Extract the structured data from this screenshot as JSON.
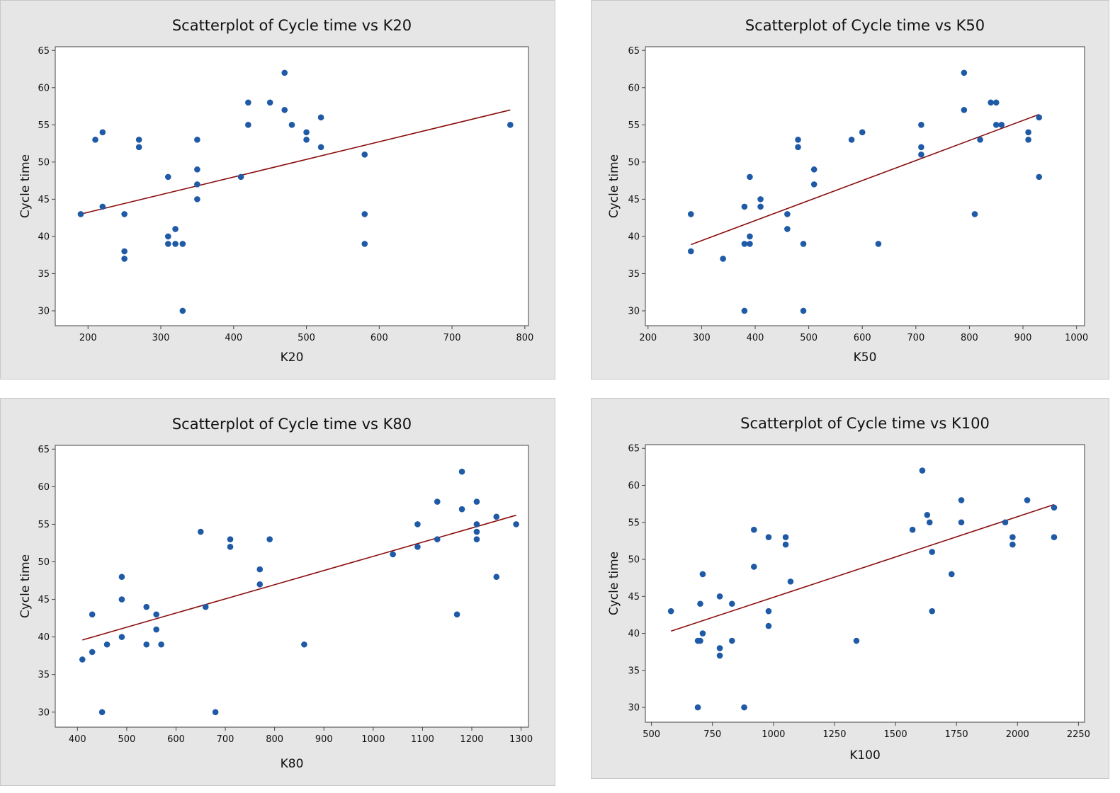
{
  "colors": {
    "frame_bg": "#e6e6e6",
    "plot_bg": "#ffffff",
    "point": "#1f5aa6",
    "fit": "#8b0f0f",
    "axis": "#444444"
  },
  "chart_data": [
    {
      "type": "scatter",
      "title": "Scatterplot of Cycle time vs K20",
      "xlabel": "K20",
      "ylabel": "Cycle time",
      "xlim": [
        155,
        805
      ],
      "ylim": [
        28,
        65.5
      ],
      "xticks": [
        200,
        300,
        400,
        500,
        600,
        700,
        800
      ],
      "yticks": [
        30,
        35,
        40,
        45,
        50,
        55,
        60,
        65
      ],
      "fit": {
        "x": [
          190,
          780
        ],
        "y": [
          43.0,
          57.0
        ]
      },
      "points": [
        [
          190,
          43
        ],
        [
          210,
          53
        ],
        [
          220,
          54
        ],
        [
          220,
          44
        ],
        [
          250,
          43
        ],
        [
          250,
          38
        ],
        [
          250,
          37
        ],
        [
          270,
          53
        ],
        [
          270,
          52
        ],
        [
          310,
          48
        ],
        [
          310,
          40
        ],
        [
          310,
          39
        ],
        [
          320,
          41
        ],
        [
          320,
          39
        ],
        [
          330,
          39
        ],
        [
          330,
          30
        ],
        [
          350,
          53
        ],
        [
          350,
          49
        ],
        [
          350,
          47
        ],
        [
          350,
          45
        ],
        [
          410,
          48
        ],
        [
          420,
          58
        ],
        [
          420,
          55
        ],
        [
          450,
          58
        ],
        [
          470,
          62
        ],
        [
          470,
          57
        ],
        [
          480,
          55
        ],
        [
          500,
          54
        ],
        [
          500,
          53
        ],
        [
          520,
          56
        ],
        [
          520,
          52
        ],
        [
          580,
          51
        ],
        [
          580,
          43
        ],
        [
          580,
          39
        ],
        [
          780,
          55
        ]
      ]
    },
    {
      "type": "scatter",
      "title": "Scatterplot of Cycle time vs K50",
      "xlabel": "K50",
      "ylabel": "Cycle time",
      "xlim": [
        195,
        1015
      ],
      "ylim": [
        28,
        65.5
      ],
      "xticks": [
        200,
        300,
        400,
        500,
        600,
        700,
        800,
        900,
        1000
      ],
      "yticks": [
        30,
        35,
        40,
        45,
        50,
        55,
        60,
        65
      ],
      "fit": {
        "x": [
          280,
          930
        ],
        "y": [
          38.9,
          56.4
        ]
      },
      "points": [
        [
          280,
          43
        ],
        [
          280,
          38
        ],
        [
          340,
          37
        ],
        [
          380,
          44
        ],
        [
          380,
          39
        ],
        [
          380,
          30
        ],
        [
          390,
          48
        ],
        [
          390,
          40
        ],
        [
          390,
          39
        ],
        [
          410,
          45
        ],
        [
          410,
          44
        ],
        [
          460,
          43
        ],
        [
          460,
          41
        ],
        [
          480,
          53
        ],
        [
          480,
          52
        ],
        [
          490,
          39
        ],
        [
          490,
          30
        ],
        [
          510,
          49
        ],
        [
          510,
          47
        ],
        [
          580,
          53
        ],
        [
          600,
          54
        ],
        [
          630,
          39
        ],
        [
          710,
          55
        ],
        [
          710,
          52
        ],
        [
          710,
          51
        ],
        [
          790,
          62
        ],
        [
          790,
          57
        ],
        [
          810,
          43
        ],
        [
          820,
          53
        ],
        [
          840,
          58
        ],
        [
          850,
          58
        ],
        [
          850,
          55
        ],
        [
          860,
          55
        ],
        [
          910,
          54
        ],
        [
          910,
          53
        ],
        [
          930,
          56
        ],
        [
          930,
          48
        ]
      ]
    },
    {
      "type": "scatter",
      "title": "Scatterplot of Cycle time vs K80",
      "xlabel": "K80",
      "ylabel": "Cycle time",
      "xlim": [
        355,
        1315
      ],
      "ylim": [
        28,
        65.5
      ],
      "xticks": [
        400,
        500,
        600,
        700,
        800,
        900,
        1000,
        1100,
        1200,
        1300
      ],
      "yticks": [
        30,
        35,
        40,
        45,
        50,
        55,
        60,
        65
      ],
      "fit": {
        "x": [
          410,
          1290
        ],
        "y": [
          39.6,
          56.2
        ]
      },
      "points": [
        [
          410,
          37
        ],
        [
          430,
          43
        ],
        [
          430,
          38
        ],
        [
          450,
          30
        ],
        [
          460,
          39
        ],
        [
          490,
          48
        ],
        [
          490,
          45
        ],
        [
          490,
          40
        ],
        [
          540,
          44
        ],
        [
          540,
          39
        ],
        [
          560,
          43
        ],
        [
          560,
          41
        ],
        [
          570,
          39
        ],
        [
          650,
          54
        ],
        [
          660,
          44
        ],
        [
          680,
          30
        ],
        [
          710,
          53
        ],
        [
          710,
          52
        ],
        [
          770,
          49
        ],
        [
          770,
          47
        ],
        [
          790,
          53
        ],
        [
          860,
          39
        ],
        [
          1040,
          51
        ],
        [
          1090,
          55
        ],
        [
          1090,
          52
        ],
        [
          1130,
          58
        ],
        [
          1130,
          53
        ],
        [
          1170,
          43
        ],
        [
          1180,
          62
        ],
        [
          1180,
          57
        ],
        [
          1210,
          58
        ],
        [
          1210,
          55
        ],
        [
          1210,
          54
        ],
        [
          1210,
          53
        ],
        [
          1250,
          56
        ],
        [
          1250,
          48
        ],
        [
          1290,
          55
        ]
      ]
    },
    {
      "type": "scatter",
      "title": "Scatterplot of Cycle time vs K100",
      "xlabel": "K100",
      "ylabel": "Cycle time",
      "xlim": [
        475,
        2275
      ],
      "ylim": [
        28,
        65.5
      ],
      "xticks": [
        500,
        750,
        1000,
        1250,
        1500,
        1750,
        2000,
        2250
      ],
      "yticks": [
        30,
        35,
        40,
        45,
        50,
        55,
        60,
        65
      ],
      "fit": {
        "x": [
          580,
          2150
        ],
        "y": [
          40.3,
          57.4
        ]
      },
      "points": [
        [
          580,
          43
        ],
        [
          690,
          39
        ],
        [
          690,
          30
        ],
        [
          700,
          44
        ],
        [
          700,
          39
        ],
        [
          710,
          48
        ],
        [
          710,
          40
        ],
        [
          780,
          45
        ],
        [
          780,
          38
        ],
        [
          780,
          37
        ],
        [
          830,
          44
        ],
        [
          830,
          39
        ],
        [
          880,
          30
        ],
        [
          920,
          54
        ],
        [
          920,
          49
        ],
        [
          980,
          53
        ],
        [
          980,
          43
        ],
        [
          980,
          41
        ],
        [
          1050,
          53
        ],
        [
          1050,
          52
        ],
        [
          1070,
          47
        ],
        [
          1340,
          39
        ],
        [
          1570,
          54
        ],
        [
          1610,
          62
        ],
        [
          1630,
          56
        ],
        [
          1640,
          55
        ],
        [
          1650,
          51
        ],
        [
          1650,
          43
        ],
        [
          1730,
          48
        ],
        [
          1770,
          58
        ],
        [
          1770,
          55
        ],
        [
          1950,
          55
        ],
        [
          1980,
          53
        ],
        [
          1980,
          52
        ],
        [
          2040,
          58
        ],
        [
          2150,
          57
        ],
        [
          2150,
          53
        ]
      ]
    }
  ]
}
